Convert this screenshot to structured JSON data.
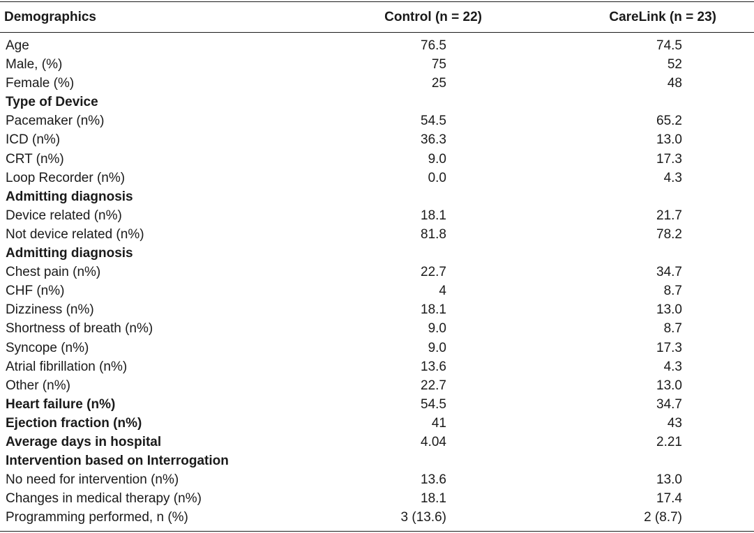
{
  "header": {
    "demographics": "Demographics",
    "control": "Control (n = 22)",
    "carelink": "CareLink (n = 23)"
  },
  "rows": [
    {
      "label": "Age",
      "control": "76.5",
      "carelink": "74.5"
    },
    {
      "label": "Male, (%)",
      "control": "75",
      "carelink": "52"
    },
    {
      "label": "Female (%)",
      "control": "25",
      "carelink": "48"
    },
    {
      "label": "Type of Device",
      "control": "",
      "carelink": ""
    },
    {
      "label": "Pacemaker (n%)",
      "control": "54.5",
      "carelink": "65.2"
    },
    {
      "label": "ICD (n%)",
      "control": "36.3",
      "carelink": "13.0"
    },
    {
      "label": "CRT (n%)",
      "control": "9.0",
      "carelink": "17.3"
    },
    {
      "label": "Loop Recorder (n%)",
      "control": "0.0",
      "carelink": "4.3"
    },
    {
      "label": "Admitting diagnosis",
      "control": "",
      "carelink": ""
    },
    {
      "label": "Device related (n%)",
      "control": "18.1",
      "carelink": "21.7"
    },
    {
      "label": "Not device related (n%)",
      "control": "81.8",
      "carelink": "78.2"
    },
    {
      "label": "Admitting diagnosis",
      "control": "",
      "carelink": ""
    },
    {
      "label": "Chest pain (n%)",
      "control": "22.7",
      "carelink": "34.7"
    },
    {
      "label": "CHF (n%)",
      "control": "4",
      "carelink": "8.7"
    },
    {
      "label": "Dizziness (n%)",
      "control": "18.1",
      "carelink": "13.0"
    },
    {
      "label": "Shortness of breath (n%)",
      "control": "9.0",
      "carelink": "8.7"
    },
    {
      "label": "Syncope (n%)",
      "control": "9.0",
      "carelink": "17.3"
    },
    {
      "label": "Atrial fibrillation (n%)",
      "control": "13.6",
      "carelink": "4.3"
    },
    {
      "label": "Other (n%)",
      "control": "22.7",
      "carelink": "13.0"
    },
    {
      "label": "Heart failure (n%)",
      "control": "54.5",
      "carelink": "34.7"
    },
    {
      "label": "Ejection fraction (n%)",
      "control": "41",
      "carelink": "43"
    },
    {
      "label": "Average days in hospital",
      "control": "4.04",
      "carelink": "2.21"
    },
    {
      "label": "Intervention based on Interrogation",
      "control": "",
      "carelink": ""
    },
    {
      "label": "No need for intervention (n%)",
      "control": "13.6",
      "carelink": "13.0"
    },
    {
      "label": "Changes in medical therapy (n%)",
      "control": "18.1",
      "carelink": "17.4"
    },
    {
      "label": "Programming performed, n (%)",
      "control": "3 (13.6)",
      "carelink": "2 (8.7)"
    }
  ]
}
